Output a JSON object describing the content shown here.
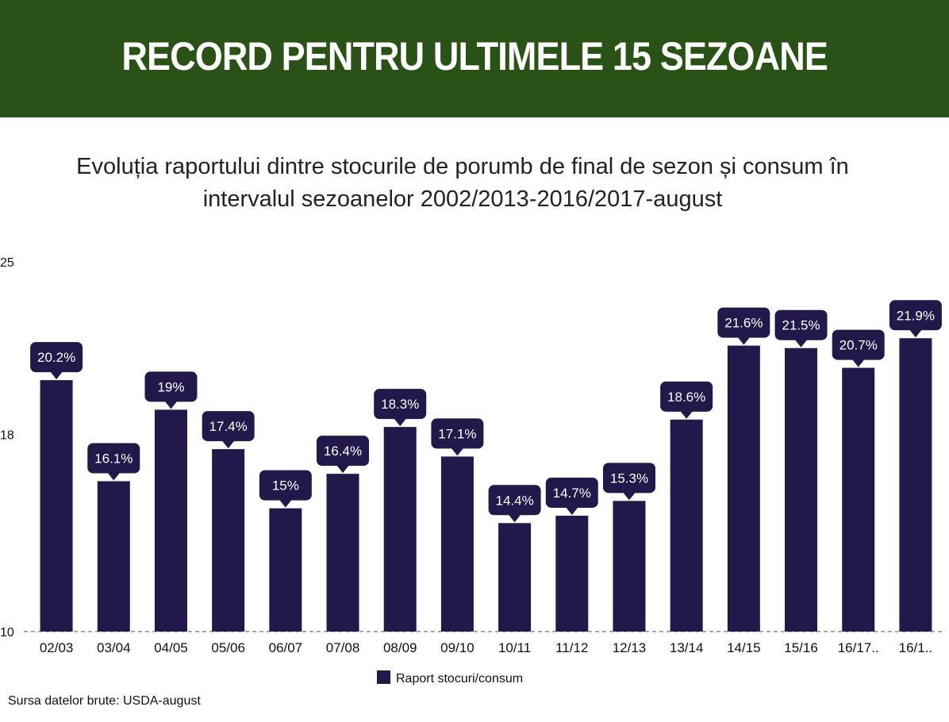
{
  "banner": {
    "title": "RECORD PENTRU ULTIMELE 15 SEZOANE"
  },
  "subtitle": "Evoluția raportului dintre stocurile de porumb de final de sezon și consum în\nintervalul sezoanelor 2002/2013-2016/2017-august",
  "source": "Sursa datelor brute: USDA-august",
  "colors": {
    "banner": "#2b5216",
    "bar": "#22184a",
    "callout": "#22184a"
  },
  "chart_data": {
    "type": "bar",
    "categories": [
      "02/03",
      "03/04",
      "04/05",
      "05/06",
      "06/07",
      "07/08",
      "08/09",
      "09/10",
      "10/11",
      "11/12",
      "12/13",
      "13/14",
      "14/15",
      "15/16",
      "16/17..",
      "16/1.."
    ],
    "series": [
      {
        "name": "Raport stocuri/consum",
        "values": [
          20.2,
          16.1,
          19,
          17.4,
          15,
          16.4,
          18.3,
          17.1,
          14.4,
          14.7,
          15.3,
          18.6,
          21.6,
          21.5,
          20.7,
          21.9
        ],
        "labels": [
          "20.2%",
          "16.1%",
          "19%",
          "17.4%",
          "15%",
          "16.4%",
          "18.3%",
          "17.1%",
          "14.4%",
          "14.7%",
          "15.3%",
          "18.6%",
          "21.6%",
          "21.5%",
          "20.7%",
          "21.9%"
        ]
      }
    ],
    "ylim": [
      10,
      25
    ],
    "yticks": [
      "10",
      "18",
      "25"
    ],
    "legend_position": "bottom-center",
    "grid": false
  }
}
